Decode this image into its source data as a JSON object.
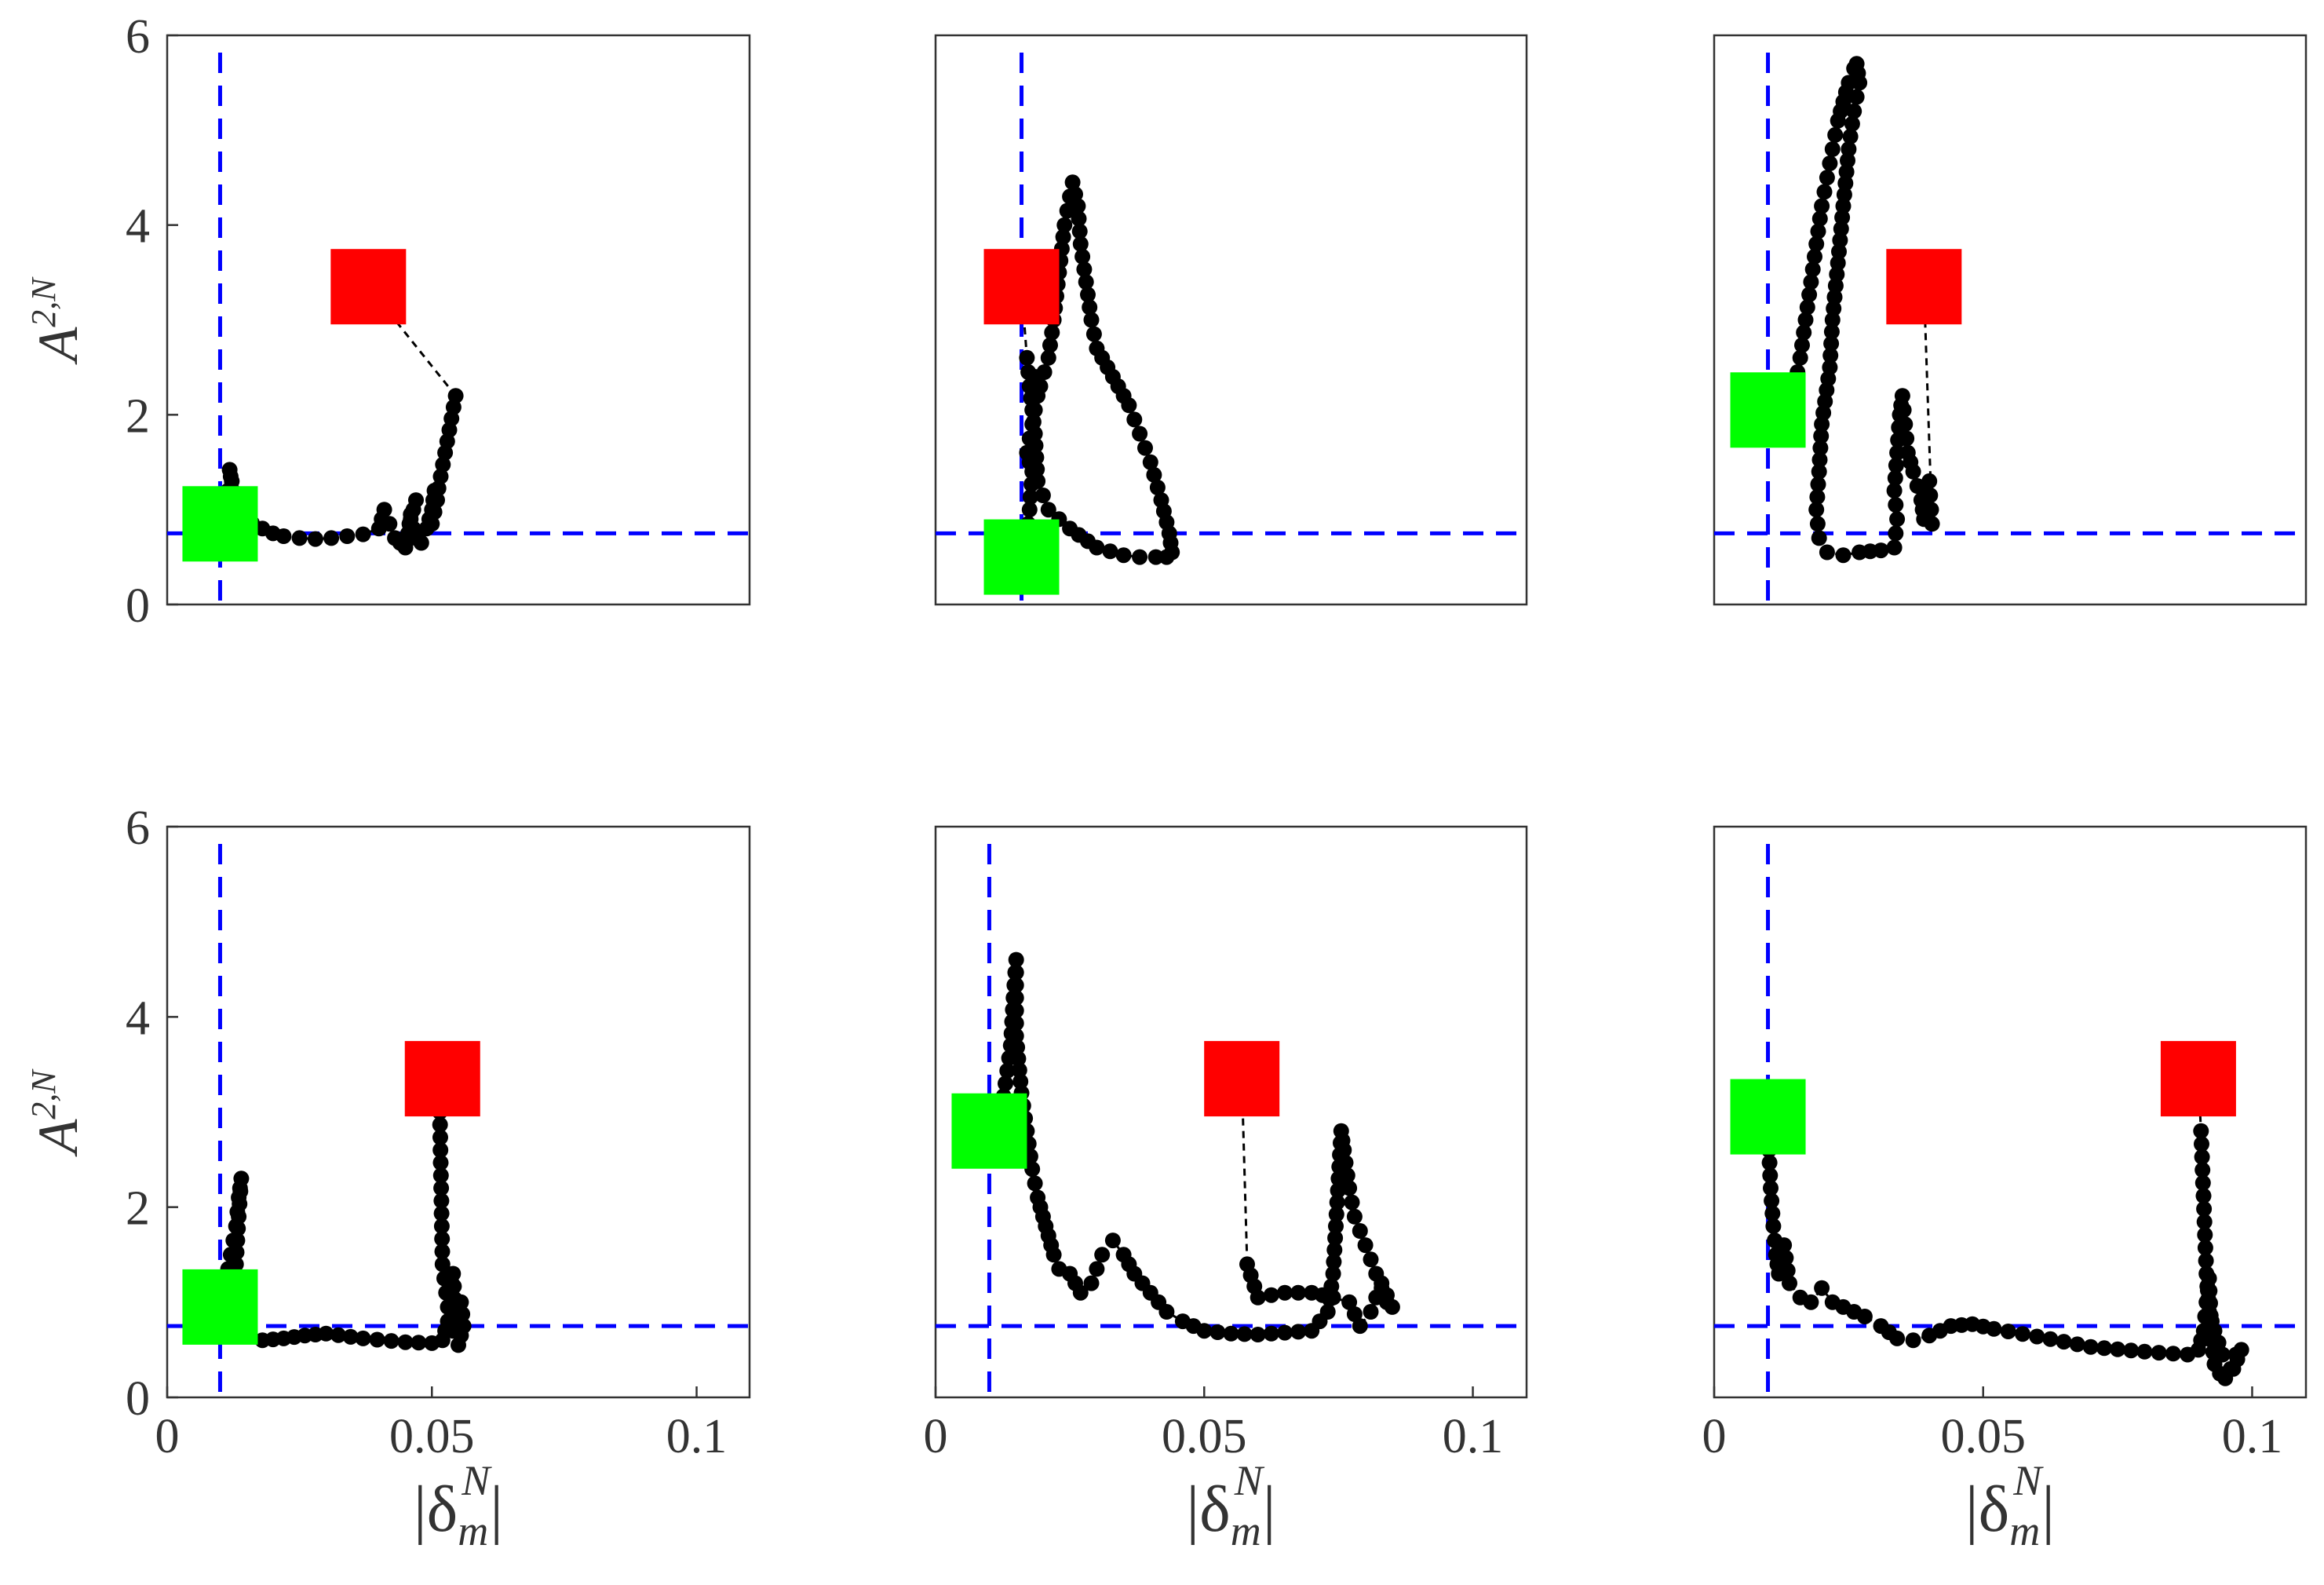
{
  "chart_data": [
    {
      "type": "scatter",
      "panel": "top-left",
      "xlim": [
        0,
        0.11
      ],
      "ylim": [
        0,
        6
      ],
      "xticks": [],
      "yticks": [
        "0",
        "2",
        "4",
        "6"
      ],
      "ylabel": "A",
      "ylabel_sup": "2,N",
      "xlabel": "",
      "ref_x": 0.01,
      "ref_y": 0.75,
      "start": [
        0.01,
        0.85
      ],
      "end": [
        0.038,
        3.35
      ],
      "path": [
        [
          0.01,
          0.85
        ],
        [
          0.011,
          1.0
        ],
        [
          0.0115,
          1.2
        ],
        [
          0.012,
          1.35
        ],
        [
          0.0118,
          1.42
        ],
        [
          0.0122,
          1.3
        ],
        [
          0.0125,
          1.1
        ],
        [
          0.013,
          0.95
        ],
        [
          0.014,
          0.9
        ],
        [
          0.016,
          0.86
        ],
        [
          0.018,
          0.8
        ],
        [
          0.02,
          0.75
        ],
        [
          0.022,
          0.72
        ],
        [
          0.025,
          0.7
        ],
        [
          0.028,
          0.69
        ],
        [
          0.031,
          0.7
        ],
        [
          0.034,
          0.72
        ],
        [
          0.037,
          0.74
        ],
        [
          0.04,
          0.8
        ],
        [
          0.041,
          1.0
        ],
        [
          0.042,
          0.85
        ],
        [
          0.043,
          0.7
        ],
        [
          0.044,
          0.65
        ],
        [
          0.045,
          0.6
        ],
        [
          0.0455,
          0.75
        ],
        [
          0.046,
          0.95
        ],
        [
          0.047,
          1.1
        ],
        [
          0.046,
          0.9
        ],
        [
          0.047,
          0.7
        ],
        [
          0.048,
          0.65
        ],
        [
          0.049,
          0.8
        ],
        [
          0.05,
          1.0
        ],
        [
          0.0505,
          1.2
        ],
        [
          0.051,
          1.1
        ],
        [
          0.05,
          0.85
        ],
        [
          0.0525,
          1.6
        ],
        [
          0.0545,
          2.2
        ],
        [
          0.038,
          3.35
        ]
      ]
    },
    {
      "type": "scatter",
      "panel": "top-center",
      "xlim": [
        0,
        0.11
      ],
      "ylim": [
        0,
        6
      ],
      "xticks": [],
      "yticks": [],
      "ylabel": "",
      "xlabel": "",
      "ref_x": 0.016,
      "ref_y": 0.75,
      "start": [
        0.016,
        0.5
      ],
      "end": [
        0.016,
        3.35
      ],
      "path": [
        [
          0.016,
          0.5
        ],
        [
          0.017,
          0.7
        ],
        [
          0.0175,
          1.0
        ],
        [
          0.018,
          1.4
        ],
        [
          0.017,
          1.6
        ],
        [
          0.018,
          1.9
        ],
        [
          0.019,
          2.2
        ],
        [
          0.0185,
          2.4
        ],
        [
          0.0195,
          2.3
        ],
        [
          0.021,
          2.6
        ],
        [
          0.022,
          3.0
        ],
        [
          0.023,
          3.5
        ],
        [
          0.024,
          4.0
        ],
        [
          0.0255,
          4.45
        ],
        [
          0.0265,
          4.2
        ],
        [
          0.027,
          3.8
        ],
        [
          0.028,
          3.4
        ],
        [
          0.029,
          3.0
        ],
        [
          0.03,
          2.7
        ],
        [
          0.032,
          2.5
        ],
        [
          0.034,
          2.3
        ],
        [
          0.036,
          2.1
        ],
        [
          0.038,
          1.8
        ],
        [
          0.04,
          1.5
        ],
        [
          0.042,
          1.1
        ],
        [
          0.0435,
          0.75
        ],
        [
          0.044,
          0.55
        ],
        [
          0.043,
          0.5
        ],
        [
          0.041,
          0.5
        ],
        [
          0.038,
          0.5
        ],
        [
          0.035,
          0.52
        ],
        [
          0.03,
          0.6
        ],
        [
          0.025,
          0.8
        ],
        [
          0.021,
          1.0
        ],
        [
          0.019,
          1.3
        ],
        [
          0.0185,
          1.8
        ],
        [
          0.0175,
          2.3
        ],
        [
          0.017,
          2.6
        ],
        [
          0.016,
          3.35
        ]
      ]
    },
    {
      "type": "scatter",
      "panel": "top-right",
      "xlim": [
        0,
        0.11
      ],
      "ylim": [
        0,
        6
      ],
      "xticks": [],
      "yticks": [],
      "ylabel": "",
      "xlabel": "",
      "ref_x": 0.01,
      "ref_y": 0.75,
      "start": [
        0.01,
        2.05
      ],
      "end": [
        0.039,
        3.35
      ],
      "path": [
        [
          0.01,
          2.05
        ],
        [
          0.015,
          2.3
        ],
        [
          0.016,
          2.6
        ],
        [
          0.017,
          3.0
        ],
        [
          0.018,
          3.4
        ],
        [
          0.019,
          3.8
        ],
        [
          0.02,
          4.2
        ],
        [
          0.021,
          4.5
        ],
        [
          0.022,
          4.8
        ],
        [
          0.023,
          5.1
        ],
        [
          0.024,
          5.3
        ],
        [
          0.025,
          5.5
        ],
        [
          0.026,
          5.65
        ],
        [
          0.0265,
          5.7
        ],
        [
          0.027,
          5.5
        ],
        [
          0.026,
          5.2
        ],
        [
          0.025,
          4.8
        ],
        [
          0.024,
          4.2
        ],
        [
          0.023,
          3.6
        ],
        [
          0.022,
          3.0
        ],
        [
          0.0215,
          2.5
        ],
        [
          0.02,
          1.9
        ],
        [
          0.0195,
          1.4
        ],
        [
          0.019,
          1.0
        ],
        [
          0.0195,
          0.7
        ],
        [
          0.021,
          0.55
        ],
        [
          0.024,
          0.52
        ],
        [
          0.027,
          0.55
        ],
        [
          0.031,
          0.57
        ],
        [
          0.0335,
          0.6
        ],
        [
          0.034,
          0.9
        ],
        [
          0.0335,
          1.2
        ],
        [
          0.034,
          1.6
        ],
        [
          0.0345,
          2.0
        ],
        [
          0.035,
          2.2
        ],
        [
          0.0355,
          1.9
        ],
        [
          0.036,
          1.6
        ],
        [
          0.037,
          1.4
        ],
        [
          0.0385,
          1.1
        ],
        [
          0.039,
          0.9
        ],
        [
          0.04,
          1.3
        ],
        [
          0.0405,
          0.85
        ],
        [
          0.039,
          3.35
        ]
      ]
    },
    {
      "type": "scatter",
      "panel": "bottom-left",
      "xlim": [
        0,
        0.11
      ],
      "ylim": [
        0,
        6
      ],
      "xticks": [
        "0",
        "0.05",
        "0.1"
      ],
      "yticks": [
        "0",
        "2",
        "4",
        "6"
      ],
      "ylabel": "A",
      "ylabel_sup": "2,N",
      "xlabel": "|δ_m^N|",
      "ref_x": 0.01,
      "ref_y": 0.75,
      "start": [
        0.01,
        0.95
      ],
      "end": [
        0.052,
        3.35
      ],
      "path": [
        [
          0.01,
          0.95
        ],
        [
          0.011,
          1.2
        ],
        [
          0.012,
          1.5
        ],
        [
          0.013,
          1.8
        ],
        [
          0.0135,
          2.1
        ],
        [
          0.014,
          2.3
        ],
        [
          0.0135,
          1.9
        ],
        [
          0.013,
          1.4
        ],
        [
          0.012,
          1.0
        ],
        [
          0.013,
          0.8
        ],
        [
          0.015,
          0.65
        ],
        [
          0.018,
          0.6
        ],
        [
          0.022,
          0.62
        ],
        [
          0.026,
          0.65
        ],
        [
          0.03,
          0.67
        ],
        [
          0.037,
          0.62
        ],
        [
          0.045,
          0.58
        ],
        [
          0.05,
          0.57
        ],
        [
          0.052,
          0.6
        ],
        [
          0.053,
          0.8
        ],
        [
          0.0535,
          1.1
        ],
        [
          0.054,
          1.3
        ],
        [
          0.0545,
          0.9
        ],
        [
          0.055,
          0.7
        ],
        [
          0.0555,
          1.0
        ],
        [
          0.056,
          0.75
        ],
        [
          0.055,
          0.55
        ],
        [
          0.054,
          0.7
        ],
        [
          0.053,
          0.95
        ],
        [
          0.052,
          1.4
        ],
        [
          0.0515,
          3.0
        ],
        [
          0.052,
          3.35
        ]
      ]
    },
    {
      "type": "scatter",
      "panel": "bottom-center",
      "xlim": [
        0,
        0.11
      ],
      "ylim": [
        0,
        6
      ],
      "xticks": [
        "0",
        "0.05",
        "0.1"
      ],
      "yticks": [],
      "ylabel": "",
      "xlabel": "|δ_m^N|",
      "ref_x": 0.01,
      "ref_y": 0.75,
      "start": [
        0.01,
        2.8
      ],
      "end": [
        0.057,
        3.35
      ],
      "path": [
        [
          0.01,
          2.8
        ],
        [
          0.011,
          2.6
        ],
        [
          0.012,
          2.9
        ],
        [
          0.013,
          3.3
        ],
        [
          0.014,
          3.7
        ],
        [
          0.0145,
          4.2
        ],
        [
          0.015,
          4.6
        ],
        [
          0.015,
          3.8
        ],
        [
          0.016,
          3.2
        ],
        [
          0.017,
          2.8
        ],
        [
          0.018,
          2.4
        ],
        [
          0.019,
          2.1
        ],
        [
          0.02,
          1.9
        ],
        [
          0.021,
          1.7
        ],
        [
          0.022,
          1.5
        ],
        [
          0.023,
          1.35
        ],
        [
          0.025,
          1.3
        ],
        [
          0.027,
          1.1
        ],
        [
          0.029,
          1.2
        ],
        [
          0.031,
          1.5
        ],
        [
          0.033,
          1.65
        ],
        [
          0.035,
          1.5
        ],
        [
          0.037,
          1.3
        ],
        [
          0.04,
          1.1
        ],
        [
          0.043,
          0.9
        ],
        [
          0.046,
          0.8
        ],
        [
          0.05,
          0.7
        ],
        [
          0.055,
          0.67
        ],
        [
          0.06,
          0.66
        ],
        [
          0.065,
          0.68
        ],
        [
          0.07,
          0.7
        ],
        [
          0.073,
          0.9
        ],
        [
          0.074,
          1.3
        ],
        [
          0.0745,
          1.8
        ],
        [
          0.075,
          2.3
        ],
        [
          0.0755,
          2.8
        ],
        [
          0.076,
          2.6
        ],
        [
          0.077,
          2.2
        ],
        [
          0.078,
          1.9
        ],
        [
          0.08,
          1.6
        ],
        [
          0.082,
          1.3
        ],
        [
          0.084,
          1.0
        ],
        [
          0.085,
          0.95
        ],
        [
          0.083,
          1.2
        ],
        [
          0.081,
          0.9
        ],
        [
          0.079,
          0.75
        ],
        [
          0.077,
          1.0
        ],
        [
          0.074,
          1.05
        ],
        [
          0.07,
          1.1
        ],
        [
          0.065,
          1.1
        ],
        [
          0.06,
          1.05
        ],
        [
          0.058,
          1.4
        ],
        [
          0.057,
          3.35
        ]
      ]
    },
    {
      "type": "scatter",
      "panel": "bottom-right",
      "xlim": [
        0,
        0.11
      ],
      "ylim": [
        0,
        6
      ],
      "xticks": [
        "0",
        "0.05",
        "0.1"
      ],
      "yticks": [],
      "ylabel": "",
      "xlabel": "|δ_m^N|",
      "ref_x": 0.01,
      "ref_y": 0.75,
      "start": [
        0.01,
        2.95
      ],
      "end": [
        0.09,
        3.35
      ],
      "path": [
        [
          0.01,
          2.95
        ],
        [
          0.0102,
          2.6
        ],
        [
          0.0105,
          2.2
        ],
        [
          0.011,
          1.8
        ],
        [
          0.0115,
          1.5
        ],
        [
          0.012,
          1.3
        ],
        [
          0.013,
          1.6
        ],
        [
          0.014,
          1.2
        ],
        [
          0.016,
          1.05
        ],
        [
          0.018,
          1.0
        ],
        [
          0.02,
          1.15
        ],
        [
          0.022,
          1.0
        ],
        [
          0.024,
          0.95
        ],
        [
          0.026,
          0.9
        ],
        [
          0.028,
          0.85
        ],
        [
          0.031,
          0.75
        ],
        [
          0.034,
          0.62
        ],
        [
          0.037,
          0.6
        ],
        [
          0.04,
          0.65
        ],
        [
          0.044,
          0.75
        ],
        [
          0.048,
          0.77
        ],
        [
          0.052,
          0.72
        ],
        [
          0.06,
          0.64
        ],
        [
          0.07,
          0.53
        ],
        [
          0.08,
          0.48
        ],
        [
          0.088,
          0.45
        ],
        [
          0.09,
          0.5
        ],
        [
          0.091,
          0.7
        ],
        [
          0.0915,
          1.0
        ],
        [
          0.092,
          1.25
        ],
        [
          0.0925,
          0.6
        ],
        [
          0.093,
          0.35
        ],
        [
          0.094,
          0.25
        ],
        [
          0.095,
          0.2
        ],
        [
          0.096,
          0.3
        ],
        [
          0.097,
          0.45
        ],
        [
          0.098,
          0.5
        ],
        [
          0.0965,
          0.3
        ],
        [
          0.0945,
          0.45
        ],
        [
          0.093,
          0.7
        ],
        [
          0.092,
          0.9
        ],
        [
          0.0915,
          1.3
        ],
        [
          0.0905,
          2.8
        ],
        [
          0.09,
          3.35
        ]
      ]
    }
  ],
  "colors": {
    "start": "#00ff00",
    "end": "#ff0000",
    "ref": "#0000ff",
    "marker": "#000000",
    "frame": "#333333"
  }
}
